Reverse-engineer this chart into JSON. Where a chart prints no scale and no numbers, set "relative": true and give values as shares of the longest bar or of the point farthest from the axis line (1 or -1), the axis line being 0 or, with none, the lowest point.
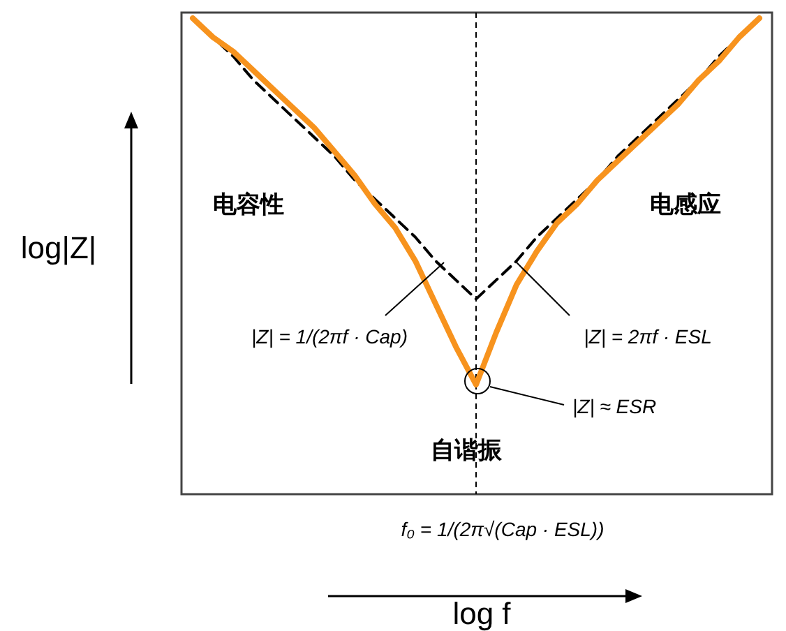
{
  "chart_data": {
    "type": "line",
    "relative": true,
    "xlabel": "log f",
    "ylabel": "log|Z|",
    "categories": [
      null,
      null,
      null,
      null,
      null,
      null,
      null,
      null,
      null,
      null,
      null,
      null,
      null,
      null,
      null,
      null,
      null,
      null,
      null,
      null,
      null,
      null,
      null,
      null,
      null,
      null,
      null,
      null,
      null
    ],
    "series": [
      {
        "color": "#000000",
        "line_style": "dashed",
        "values": [
          1.0,
          0.96,
          0.92,
          0.87,
          0.83,
          0.79,
          0.75,
          0.71,
          0.66,
          0.62,
          0.58,
          0.54,
          0.49,
          0.45,
          0.41,
          0.45,
          0.49,
          0.54,
          0.58,
          0.62,
          0.66,
          0.71,
          0.75,
          0.79,
          0.83,
          0.87,
          0.92,
          0.96,
          1.0
        ]
      },
      {
        "color": "#f7931e",
        "line_style": "solid",
        "values": [
          1.0,
          0.96,
          0.93,
          0.89,
          0.85,
          0.81,
          0.77,
          0.72,
          0.67,
          0.61,
          0.56,
          0.49,
          0.4,
          0.31,
          0.23,
          0.34,
          0.44,
          0.51,
          0.57,
          0.61,
          0.66,
          0.7,
          0.74,
          0.78,
          0.82,
          0.87,
          0.91,
          0.96,
          1.0
        ]
      }
    ],
    "annotations": [
      "电容性",
      "电感应",
      "自谐振",
      "|Z| = 1/(2πf · Cap)",
      "|Z| = 2πf · ESL",
      "|Z| ≈ ESR",
      "f₀ = 1/(2π√(Cap · ESL))"
    ]
  }
}
